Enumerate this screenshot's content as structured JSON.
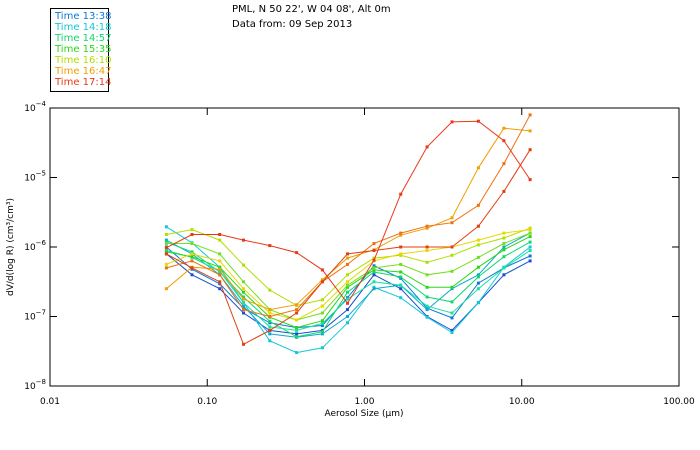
{
  "header": {
    "line1": "PML, N 50 22', W 04 08', Alt 0m",
    "line2": "Data from: 09 Sep 2013"
  },
  "chart_data": {
    "type": "line",
    "title": "PML, N 50 22', W 04 08', Alt 0m",
    "subtitle": "Data from: 09 Sep 2013",
    "xlabel": "Aerosol Size (μm)",
    "ylabel": "dV/d(log R) (cm³/cm³)",
    "xscale": "log",
    "yscale": "log",
    "xlim": [
      0.01,
      100
    ],
    "ylim": [
      1e-08,
      0.0001
    ],
    "x_ticks": [
      "0.01",
      "0.10",
      "1.00",
      "10.00",
      "100.00"
    ],
    "y_ticks": [
      {
        "base": "10",
        "exp": "−4"
      },
      {
        "base": "10",
        "exp": "−5"
      },
      {
        "base": "10",
        "exp": "−6"
      },
      {
        "base": "10",
        "exp": "−7"
      },
      {
        "base": "10",
        "exp": "−8"
      }
    ],
    "legend_position": "top-left",
    "x": [
      0.055,
      0.08,
      0.12,
      0.17,
      0.25,
      0.37,
      0.54,
      0.78,
      1.15,
      1.7,
      2.5,
      3.6,
      5.3,
      7.7,
      11.3
    ],
    "series": [
      {
        "name": "Time 13:38",
        "color": "#0a7ad8",
        "legend": true,
        "log_values": [
          -6.0,
          -6.32,
          -6.53,
          -6.88,
          -7.09,
          -7.16,
          -7.13,
          -6.73,
          -6.27,
          -6.45,
          -6.88,
          -7.02,
          -6.52,
          -6.3,
          -6.13
        ]
      },
      {
        "name": "",
        "color": "#1a50d0",
        "legend": false,
        "log_values": [
          -6.1,
          -6.4,
          -6.6,
          -6.95,
          -7.2,
          -7.25,
          -7.2,
          -6.9,
          -6.4,
          -6.6,
          -7.0,
          -7.2,
          -6.8,
          -6.4,
          -6.2
        ]
      },
      {
        "name": "Time 14:18",
        "color": "#12c8d8",
        "legend": true,
        "log_values": [
          -5.71,
          -5.94,
          -6.29,
          -6.8,
          -7.35,
          -7.52,
          -7.45,
          -7.09,
          -6.58,
          -6.73,
          -7.01,
          -7.23,
          -6.8,
          -6.29,
          -6.0
        ]
      },
      {
        "name": "",
        "color": "#10a8d0",
        "legend": false,
        "log_values": [
          -5.9,
          -6.1,
          -6.4,
          -6.85,
          -7.25,
          -7.3,
          -7.25,
          -7.0,
          -6.6,
          -6.55,
          -6.9,
          -6.6,
          -6.4,
          -6.0,
          -5.8
        ]
      },
      {
        "name": "Time 14:57",
        "color": "#10d870",
        "legend": true,
        "log_values": [
          -5.93,
          -6.07,
          -6.36,
          -6.72,
          -7.07,
          -7.29,
          -7.22,
          -6.65,
          -6.36,
          -6.43,
          -6.72,
          -6.79,
          -6.43,
          -6.14,
          -5.93
        ]
      },
      {
        "name": "",
        "color": "#18e0a0",
        "legend": false,
        "log_values": [
          -6.05,
          -6.15,
          -6.35,
          -6.8,
          -7.15,
          -7.2,
          -7.1,
          -6.75,
          -6.5,
          -6.55,
          -6.85,
          -6.95,
          -6.6,
          -6.3,
          -6.05
        ]
      },
      {
        "name": "Time 15:35",
        "color": "#28d818",
        "legend": true,
        "log_values": [
          -6.07,
          -6.14,
          -6.29,
          -6.65,
          -7.01,
          -7.16,
          -7.06,
          -6.58,
          -6.33,
          -6.36,
          -6.58,
          -6.58,
          -6.29,
          -6.04,
          -5.85
        ]
      },
      {
        "name": "",
        "color": "#70e020",
        "legend": false,
        "log_values": [
          -5.95,
          -5.95,
          -6.1,
          -6.5,
          -6.9,
          -7.05,
          -6.95,
          -6.55,
          -6.3,
          -6.25,
          -6.4,
          -6.35,
          -6.15,
          -5.95,
          -5.8
        ]
      },
      {
        "name": "Time 16:10",
        "color": "#b0e000",
        "legend": true,
        "log_values": [
          -5.82,
          -5.75,
          -5.9,
          -6.26,
          -6.62,
          -6.84,
          -6.76,
          -6.4,
          -6.16,
          -6.12,
          -6.22,
          -6.12,
          -5.97,
          -5.87,
          -5.73
        ]
      },
      {
        "name": "",
        "color": "#e8d800",
        "legend": false,
        "log_values": [
          -6.25,
          -6.1,
          -6.2,
          -6.6,
          -6.95,
          -7.05,
          -6.85,
          -6.5,
          -6.2,
          -6.1,
          -6.05,
          -6.0,
          -5.9,
          -5.8,
          -5.75
        ]
      },
      {
        "name": "Time 16:47",
        "color": "#f0a000",
        "legend": true,
        "log_values": [
          -6.6,
          -6.29,
          -6.32,
          -6.75,
          -6.9,
          -6.83,
          -6.47,
          -6.16,
          -6.04,
          -5.83,
          -5.73,
          -5.58,
          -4.86,
          -4.29,
          -4.33
        ]
      },
      {
        "name": "",
        "color": "#f07010",
        "legend": false,
        "log_values": [
          -6.3,
          -6.2,
          -6.4,
          -6.9,
          -7.0,
          -6.9,
          -6.5,
          -6.25,
          -5.95,
          -5.8,
          -5.7,
          -5.65,
          -5.4,
          -4.8,
          -4.1
        ]
      },
      {
        "name": "Time 17:14",
        "color": "#e83818",
        "legend": true,
        "log_values": [
          -6.01,
          -5.82,
          -5.82,
          -5.9,
          -5.98,
          -6.08,
          -6.33,
          -6.81,
          -6.19,
          -5.24,
          -4.56,
          -4.2,
          -4.19,
          -4.47,
          -5.03
        ]
      },
      {
        "name": "",
        "color": "#e04010",
        "legend": false,
        "log_values": [
          -6.1,
          -6.3,
          -6.5,
          -7.4,
          -7.2,
          -6.95,
          -6.5,
          -6.1,
          -6.05,
          -6.0,
          -6.0,
          -6.0,
          -5.7,
          -5.2,
          -4.6
        ]
      }
    ]
  }
}
